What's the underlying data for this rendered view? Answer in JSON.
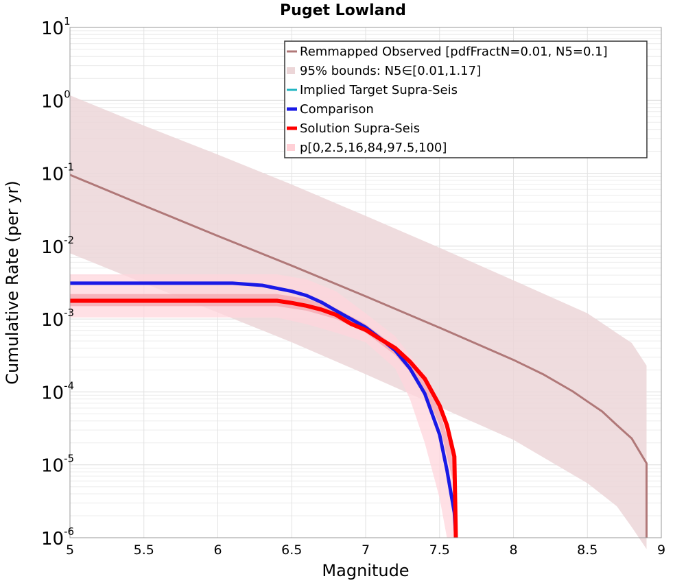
{
  "chart_data": {
    "type": "line",
    "title": "Puget Lowland",
    "xlabel": "Magnitude",
    "ylabel": "Cumulative Rate (per yr)",
    "xlim": [
      5,
      9
    ],
    "ylim": [
      1e-06,
      10
    ],
    "yscale": "log",
    "grid": true,
    "legend_position": "top-right",
    "x_ticks": [
      "5",
      "5.5",
      "6",
      "6.5",
      "7",
      "7.5",
      "8",
      "8.5",
      "9"
    ],
    "y_ticks": [
      {
        "base": "10",
        "exp": "1",
        "value": 10
      },
      {
        "base": "10",
        "exp": "0",
        "value": 1
      },
      {
        "base": "10",
        "exp": "-1",
        "value": 0.1
      },
      {
        "base": "10",
        "exp": "-2",
        "value": 0.01
      },
      {
        "base": "10",
        "exp": "-3",
        "value": 0.001
      },
      {
        "base": "10",
        "exp": "-4",
        "value": 0.0001
      },
      {
        "base": "10",
        "exp": "-5",
        "value": 1e-05
      },
      {
        "base": "10",
        "exp": "-6",
        "value": 1e-06
      }
    ],
    "legend": [
      {
        "label": "Remmapped Observed [pdfFractN=0.01, N5=0.1]",
        "color": "#b07878",
        "kind": "line"
      },
      {
        "label": "95% bounds: N5∈[0.01,1.17]",
        "color": "#ecd6d8",
        "kind": "band"
      },
      {
        "label": "Implied Target Supra-Seis",
        "color": "#22b5c2",
        "kind": "line"
      },
      {
        "label": "Comparison",
        "color": "#1a1ae6",
        "kind": "thick"
      },
      {
        "label": "Solution Supra-Seis",
        "color": "#ff0000",
        "kind": "thick"
      },
      {
        "label": "p[0,2.5,16,84,97.5,100]",
        "color": "#ffd0d6",
        "kind": "band"
      }
    ],
    "bands": [
      {
        "name": "95% bounds",
        "color": "#ecd6d8",
        "x": [
          5,
          5.5,
          6,
          6.5,
          7,
          7.5,
          8,
          8.5,
          8.7,
          8.8,
          8.9
        ],
        "upper": [
          1.17,
          0.45,
          0.18,
          0.07,
          0.026,
          0.0095,
          0.0034,
          0.0012,
          0.00064,
          0.00047,
          0.00023
        ],
        "lower": [
          0.008,
          0.0031,
          0.00123,
          0.00048,
          0.000175,
          6.2e-05,
          2.2e-05,
          5.6e-06,
          2.7e-06,
          1.4e-06,
          7e-07
        ]
      },
      {
        "name": "solution outer percentile",
        "color": "#ffd6dc",
        "x": [
          5,
          6,
          6.4,
          6.6,
          6.8,
          7.0,
          7.2,
          7.3,
          7.4,
          7.5,
          7.55,
          7.6
        ],
        "upper": [
          0.0041,
          0.0041,
          0.0041,
          0.0035,
          0.0024,
          0.0012,
          0.00058,
          0.00032,
          0.00018,
          7.5e-05,
          3.5e-05,
          1.8e-05
        ],
        "lower": [
          0.00105,
          0.00105,
          0.00105,
          0.00085,
          0.00065,
          0.00048,
          0.00021,
          8e-05,
          2e-05,
          3.5e-06,
          1e-06,
          1e-06
        ]
      },
      {
        "name": "solution inner percentile",
        "color": "#f4a6ae",
        "x": [
          5,
          6,
          6.4,
          6.6,
          6.8,
          7.0,
          7.2,
          7.3,
          7.4,
          7.5,
          7.55,
          7.6
        ],
        "upper": [
          0.0022,
          0.0022,
          0.0022,
          0.0019,
          0.0014,
          0.00085,
          0.00042,
          0.00026,
          0.00014,
          5.5e-05,
          2.5e-05,
          1.1e-05
        ],
        "lower": [
          0.0015,
          0.0015,
          0.0015,
          0.0013,
          0.001,
          0.00065,
          0.00032,
          0.00019,
          0.0001,
          3.5e-05,
          1.3e-05,
          5e-06
        ]
      }
    ],
    "series": [
      {
        "name": "Remmapped Observed [pdfFractN=0.01, N5=0.1]",
        "color": "#b07878",
        "width": 3,
        "x": [
          5,
          5.5,
          6,
          6.5,
          7,
          7.5,
          8,
          8.2,
          8.4,
          8.5,
          8.6,
          8.7,
          8.8,
          8.9,
          8.9
        ],
        "y": [
          0.095,
          0.036,
          0.0138,
          0.0054,
          0.00205,
          0.00076,
          0.000275,
          0.000175,
          0.000102,
          7.4e-05,
          5.4e-05,
          3.5e-05,
          2.3e-05,
          1.05e-05,
          1e-06
        ]
      },
      {
        "name": "Comparison",
        "color": "#1a1ae6",
        "width": 5,
        "x": [
          5,
          6.1,
          6.3,
          6.5,
          6.6,
          6.7,
          6.8,
          6.9,
          7.0,
          7.1,
          7.2,
          7.3,
          7.4,
          7.5,
          7.55,
          7.6,
          7.61
        ],
        "y": [
          0.0031,
          0.0031,
          0.0029,
          0.0024,
          0.0021,
          0.0017,
          0.0013,
          0.001,
          0.00077,
          0.00054,
          0.00037,
          0.00021,
          9.5e-05,
          2.6e-05,
          8.5e-06,
          2.2e-06,
          1e-06
        ]
      },
      {
        "name": "Solution Supra-Seis",
        "color": "#ff0000",
        "width": 6,
        "x": [
          5,
          6.4,
          6.5,
          6.6,
          6.7,
          6.8,
          6.9,
          7.0,
          7.1,
          7.2,
          7.3,
          7.4,
          7.5,
          7.55,
          7.6,
          7.61
        ],
        "y": [
          0.00178,
          0.00178,
          0.00166,
          0.00152,
          0.00135,
          0.00114,
          0.00086,
          0.00071,
          0.00053,
          0.0004,
          0.00026,
          0.000152,
          6.5e-05,
          3.5e-05,
          1.3e-05,
          1e-06
        ]
      }
    ]
  }
}
